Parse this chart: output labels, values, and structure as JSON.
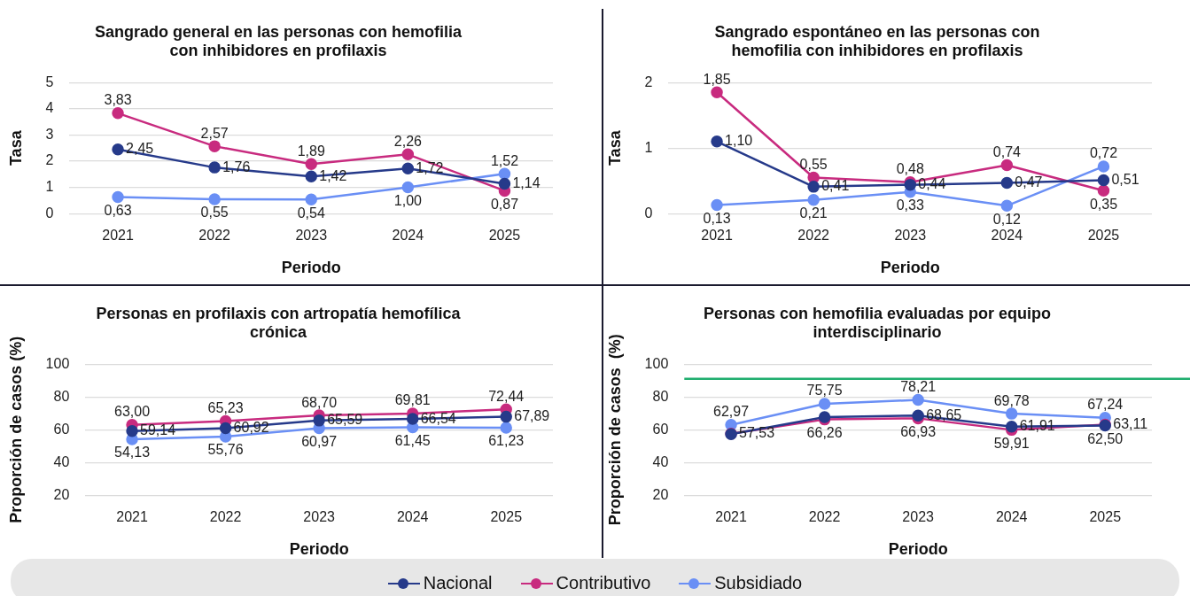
{
  "chart_data": [
    {
      "type": "line",
      "title": "Sangrado general en las personas con hemofilia con inhibidores en profilaxis",
      "xlabel": "Periodo",
      "ylabel": "Tasa",
      "categories": [
        "2021",
        "2022",
        "2023",
        "2024",
        "2025"
      ],
      "ylim": [
        0,
        5
      ],
      "yticks": [
        0,
        1,
        2,
        3,
        4,
        5
      ],
      "grid": "y",
      "marker": "circle",
      "series": [
        {
          "color": "#263a8a",
          "values": [
            2.45,
            1.76,
            1.42,
            1.72,
            1.14
          ],
          "value_labels": [
            "2,45",
            "1,76",
            "1,42",
            "1,72",
            "1,14"
          ]
        },
        {
          "color": "#c82b7f",
          "values": [
            3.83,
            2.57,
            1.89,
            2.26,
            0.87
          ],
          "value_labels": [
            "3,83",
            "2,57",
            "1,89",
            "2,26",
            "0,87"
          ]
        },
        {
          "color": "#6a8ff5",
          "values": [
            0.63,
            0.55,
            0.54,
            1.0,
            1.52
          ],
          "value_labels": [
            "0,63",
            "0,55",
            "0,54",
            "1,00",
            "1,52"
          ]
        }
      ]
    },
    {
      "type": "line",
      "title": "Sangrado espontáneo en las personas con hemofilia con inhibidores en profilaxis",
      "xlabel": "Periodo",
      "ylabel": "Tasa",
      "categories": [
        "2021",
        "2022",
        "2023",
        "2024",
        "2025"
      ],
      "ylim": [
        0,
        2
      ],
      "yticks": [
        0,
        1,
        2
      ],
      "grid": "y",
      "marker": "circle",
      "series": [
        {
          "color": "#263a8a",
          "values": [
            1.1,
            0.41,
            0.44,
            0.47,
            0.51
          ],
          "value_labels": [
            "1,10",
            "0,41",
            "0,44",
            "0,47",
            "0,51"
          ]
        },
        {
          "color": "#c82b7f",
          "values": [
            1.85,
            0.55,
            0.48,
            0.74,
            0.35
          ],
          "value_labels": [
            "1,85",
            "0,55",
            "0,48",
            "0,74",
            "0,35"
          ]
        },
        {
          "color": "#6a8ff5",
          "values": [
            0.13,
            0.21,
            0.33,
            0.12,
            0.72
          ],
          "value_labels": [
            "0,13",
            "0,21",
            "0,33",
            "0,12",
            "0,72"
          ]
        }
      ]
    },
    {
      "type": "line",
      "title": "Personas en profilaxis con artropatía hemofílica crónica",
      "xlabel": "Periodo",
      "ylabel": "Proporción de casos (%)",
      "categories": [
        "2021",
        "2022",
        "2023",
        "2024",
        "2025"
      ],
      "ylim": [
        20,
        100
      ],
      "yticks": [
        20,
        40,
        60,
        80,
        100
      ],
      "grid": "y",
      "marker": "circle",
      "series": [
        {
          "color": "#263a8a",
          "values": [
            59.14,
            60.92,
            65.59,
            66.54,
            67.89
          ],
          "value_labels": [
            "59,14",
            "60,92",
            "65,59",
            "66,54",
            "67,89"
          ]
        },
        {
          "color": "#c82b7f",
          "values": [
            63.0,
            65.23,
            68.7,
            69.81,
            72.44
          ],
          "value_labels": [
            "63,00",
            "65,23",
            "68,70",
            "69,81",
            "72,44"
          ]
        },
        {
          "color": "#6a8ff5",
          "values": [
            54.13,
            55.76,
            60.97,
            61.45,
            61.23
          ],
          "value_labels": [
            "54,13",
            "55,76",
            "60,97",
            "61,45",
            "61,23"
          ]
        }
      ]
    },
    {
      "type": "line",
      "title": "Personas con hemofilia evaluadas por equipo interdisciplinario",
      "xlabel": "Periodo",
      "ylabel": "Proporción de casos  (%)",
      "categories": [
        "2021",
        "2022",
        "2023",
        "2024",
        "2025"
      ],
      "ylim": [
        20,
        100
      ],
      "yticks": [
        20,
        40,
        60,
        80,
        100
      ],
      "grid": "y",
      "marker": "circle",
      "legend": "bottom",
      "ref_lines": [
        {
          "axis": "y",
          "value": 91,
          "color": "#1fae6e"
        }
      ],
      "series": [
        {
          "name": "Nacional",
          "color": "#263a8a",
          "values": [
            57.3,
            67.7,
            68.65,
            61.91,
            62.5
          ],
          "value_labels": [
            null,
            null,
            "68,65",
            "61,91",
            "62,50"
          ]
        },
        {
          "name": "Contributivo",
          "color": "#c82b7f",
          "values": [
            57.53,
            66.26,
            66.93,
            59.91,
            63.11
          ],
          "value_labels": [
            "57,53",
            "66,26",
            "66,93",
            "59,91",
            "63,11"
          ]
        },
        {
          "name": "Subsidiado",
          "color": "#6a8ff5",
          "values": [
            62.97,
            75.75,
            78.21,
            69.78,
            67.24
          ],
          "value_labels": [
            "62,97",
            "75,75",
            "78,21",
            "69,78",
            "67,24"
          ]
        }
      ]
    }
  ]
}
